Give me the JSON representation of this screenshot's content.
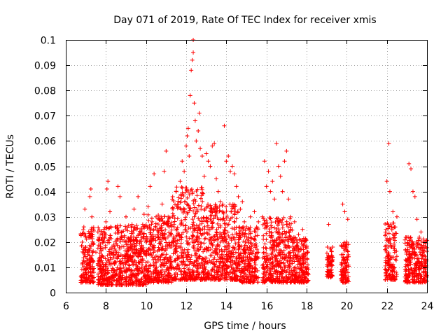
{
  "chart_data": {
    "type": "scatter",
    "title": "Day 071 of 2019, Rate Of TEC Index for receiver xmis",
    "xlabel": "GPS time / hours",
    "ylabel": "ROTI / TECUs",
    "xlim": [
      6,
      24
    ],
    "ylim": [
      0,
      0.1
    ],
    "x_ticks": [
      6,
      8,
      10,
      12,
      14,
      16,
      18,
      20,
      22,
      24
    ],
    "y_ticks": [
      0,
      0.01,
      0.02,
      0.03,
      0.04,
      0.05,
      0.06,
      0.07,
      0.08,
      0.09,
      0.1
    ],
    "x_tick_labels": [
      "6",
      "8",
      "10",
      "12",
      "14",
      "16",
      "18",
      "20",
      "22",
      "24"
    ],
    "y_tick_labels": [
      "0",
      "0.01",
      "0.02",
      "0.03",
      "0.04",
      "0.05",
      "0.06",
      "0.07",
      "0.08",
      "0.09",
      "0.1"
    ],
    "grid": true,
    "marker": "+",
    "color": "#ff0000",
    "series": [
      {
        "name": "ROTI",
        "points": [
          [
            6.8,
            0.006
          ],
          [
            6.85,
            0.012
          ],
          [
            6.9,
            0.026
          ],
          [
            6.95,
            0.033
          ],
          [
            7.0,
            0.018
          ],
          [
            7.05,
            0.009
          ],
          [
            7.1,
            0.015
          ],
          [
            7.15,
            0.022
          ],
          [
            7.2,
            0.038
          ],
          [
            7.25,
            0.041
          ],
          [
            7.3,
            0.03
          ],
          [
            7.35,
            0.012
          ],
          [
            7.4,
            0.008
          ],
          [
            7.5,
            0.016
          ],
          [
            7.6,
            0.024
          ],
          [
            7.7,
            0.014
          ],
          [
            7.8,
            0.01
          ],
          [
            7.9,
            0.02
          ],
          [
            8.0,
            0.028
          ],
          [
            8.05,
            0.041
          ],
          [
            8.1,
            0.044
          ],
          [
            8.2,
            0.032
          ],
          [
            8.3,
            0.018
          ],
          [
            8.4,
            0.006
          ],
          [
            8.5,
            0.026
          ],
          [
            8.6,
            0.042
          ],
          [
            8.7,
            0.038
          ],
          [
            8.8,
            0.021
          ],
          [
            8.9,
            0.012
          ],
          [
            9.0,
            0.03
          ],
          [
            9.1,
            0.019
          ],
          [
            9.2,
            0.009
          ],
          [
            9.3,
            0.027
          ],
          [
            9.4,
            0.033
          ],
          [
            9.5,
            0.017
          ],
          [
            9.6,
            0.038
          ],
          [
            9.7,
            0.024
          ],
          [
            9.8,
            0.012
          ],
          [
            9.9,
            0.031
          ],
          [
            10.0,
            0.02
          ],
          [
            10.1,
            0.034
          ],
          [
            10.2,
            0.042
          ],
          [
            10.3,
            0.028
          ],
          [
            10.4,
            0.047
          ],
          [
            10.5,
            0.03
          ],
          [
            10.6,
            0.022
          ],
          [
            10.7,
            0.014
          ],
          [
            10.8,
            0.035
          ],
          [
            10.9,
            0.048
          ],
          [
            11.0,
            0.056
          ],
          [
            11.1,
            0.03
          ],
          [
            11.2,
            0.018
          ],
          [
            11.3,
            0.01
          ],
          [
            11.4,
            0.026
          ],
          [
            11.5,
            0.04
          ],
          [
            11.6,
            0.035
          ],
          [
            11.7,
            0.044
          ],
          [
            11.8,
            0.052
          ],
          [
            11.9,
            0.048
          ],
          [
            12.0,
            0.058
          ],
          [
            12.05,
            0.062
          ],
          [
            12.1,
            0.065
          ],
          [
            12.15,
            0.054
          ],
          [
            12.2,
            0.078
          ],
          [
            12.25,
            0.088
          ],
          [
            12.3,
            0.092
          ],
          [
            12.35,
            0.095
          ],
          [
            12.35,
            0.1
          ],
          [
            12.4,
            0.075
          ],
          [
            12.45,
            0.068
          ],
          [
            12.5,
            0.06
          ],
          [
            12.6,
            0.064
          ],
          [
            12.65,
            0.071
          ],
          [
            12.7,
            0.057
          ],
          [
            12.8,
            0.054
          ],
          [
            12.9,
            0.046
          ],
          [
            13.0,
            0.055
          ],
          [
            13.1,
            0.052
          ],
          [
            13.2,
            0.05
          ],
          [
            13.3,
            0.058
          ],
          [
            13.4,
            0.059
          ],
          [
            13.5,
            0.045
          ],
          [
            13.6,
            0.04
          ],
          [
            13.7,
            0.036
          ],
          [
            13.8,
            0.032
          ],
          [
            13.9,
            0.066
          ],
          [
            14.0,
            0.052
          ],
          [
            14.1,
            0.054
          ],
          [
            14.2,
            0.048
          ],
          [
            14.3,
            0.05
          ],
          [
            14.4,
            0.047
          ],
          [
            14.5,
            0.042
          ],
          [
            14.6,
            0.038
          ],
          [
            14.7,
            0.033
          ],
          [
            14.8,
            0.036
          ],
          [
            14.9,
            0.028
          ],
          [
            15.0,
            0.026
          ],
          [
            15.2,
            0.03
          ],
          [
            15.4,
            0.032
          ],
          [
            15.6,
            0.028
          ],
          [
            15.8,
            0.03
          ],
          [
            15.9,
            0.052
          ],
          [
            16.0,
            0.042
          ],
          [
            16.1,
            0.048
          ],
          [
            16.2,
            0.04
          ],
          [
            16.3,
            0.044
          ],
          [
            16.4,
            0.037
          ],
          [
            16.5,
            0.059
          ],
          [
            16.6,
            0.05
          ],
          [
            16.7,
            0.046
          ],
          [
            16.8,
            0.04
          ],
          [
            16.9,
            0.052
          ],
          [
            17.0,
            0.056
          ],
          [
            17.1,
            0.037
          ],
          [
            17.2,
            0.03
          ],
          [
            17.4,
            0.028
          ],
          [
            17.6,
            0.023
          ],
          [
            17.8,
            0.025
          ],
          [
            17.9,
            0.02
          ],
          [
            18.0,
            0.018
          ],
          [
            19.1,
            0.027
          ],
          [
            19.2,
            0.012
          ],
          [
            19.3,
            0.018
          ],
          [
            19.8,
            0.035
          ],
          [
            19.9,
            0.032
          ],
          [
            20.0,
            0.02
          ],
          [
            20.05,
            0.029
          ],
          [
            22.0,
            0.044
          ],
          [
            22.1,
            0.059
          ],
          [
            22.15,
            0.04
          ],
          [
            22.3,
            0.032
          ],
          [
            22.5,
            0.03
          ],
          [
            23.1,
            0.051
          ],
          [
            23.2,
            0.049
          ],
          [
            23.3,
            0.04
          ],
          [
            23.4,
            0.038
          ],
          [
            23.5,
            0.029
          ],
          [
            23.7,
            0.024
          ],
          [
            23.9,
            0.02
          ]
        ]
      }
    ],
    "dense_bands": [
      {
        "x_range": [
          6.75,
          7.4
        ],
        "y_range": [
          0.004,
          0.026
        ]
      },
      {
        "x_range": [
          7.6,
          10.0
        ],
        "y_range": [
          0.003,
          0.027
        ]
      },
      {
        "x_range": [
          10.0,
          11.3
        ],
        "y_range": [
          0.004,
          0.031
        ]
      },
      {
        "x_range": [
          11.3,
          12.9
        ],
        "y_range": [
          0.005,
          0.042
        ]
      },
      {
        "x_range": [
          12.9,
          14.6
        ],
        "y_range": [
          0.005,
          0.035
        ]
      },
      {
        "x_range": [
          14.6,
          15.6
        ],
        "y_range": [
          0.004,
          0.026
        ]
      },
      {
        "x_range": [
          15.8,
          17.3
        ],
        "y_range": [
          0.004,
          0.03
        ]
      },
      {
        "x_range": [
          17.3,
          18.1
        ],
        "y_range": [
          0.004,
          0.022
        ]
      },
      {
        "x_range": [
          19.0,
          19.3
        ],
        "y_range": [
          0.006,
          0.018
        ]
      },
      {
        "x_range": [
          19.7,
          20.1
        ],
        "y_range": [
          0.004,
          0.02
        ]
      },
      {
        "x_range": [
          21.9,
          22.5
        ],
        "y_range": [
          0.005,
          0.028
        ]
      },
      {
        "x_range": [
          22.9,
          24.0
        ],
        "y_range": [
          0.004,
          0.022
        ]
      }
    ]
  }
}
